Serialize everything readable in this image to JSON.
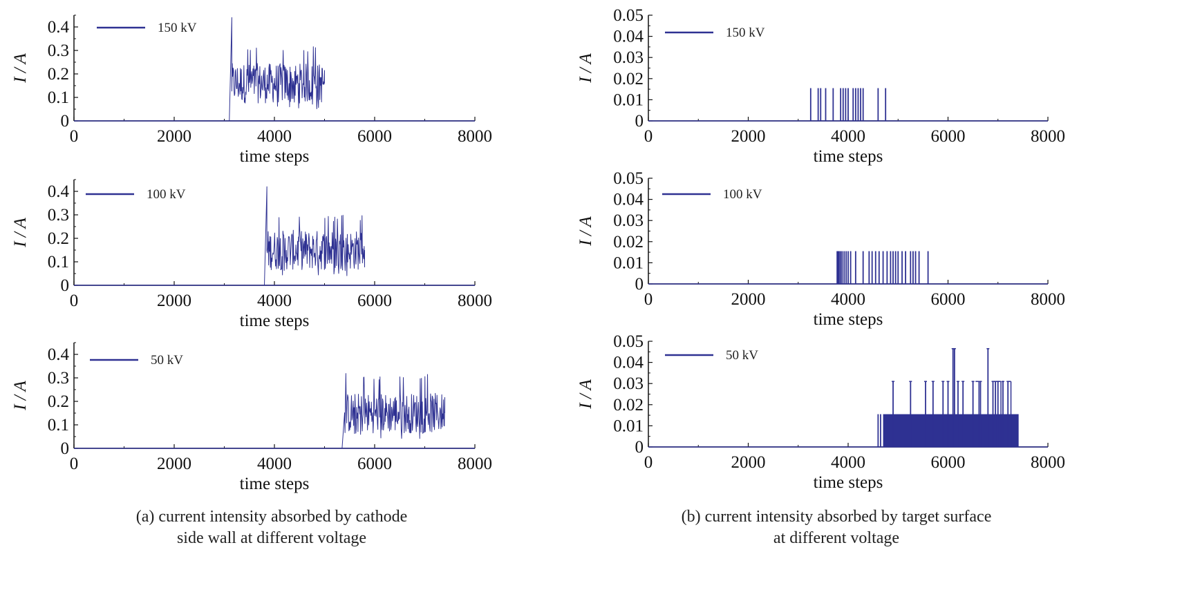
{
  "captions": {
    "a": [
      "(a) current intensity absorbed by cathode",
      "side wall at different voltage"
    ],
    "b": [
      "(b) current intensity absorbed by target surface",
      "at different voltage"
    ]
  },
  "style": {
    "series_color": "#2e3192",
    "axis_color": "#111111"
  },
  "chart_data": [
    {
      "type": "line",
      "panel": "a-150kV",
      "legend": "150 kV",
      "xlabel": "time steps",
      "ylabel": "I / A",
      "xlim": [
        0,
        8000
      ],
      "ylim": [
        0,
        0.45
      ],
      "xticks": [
        "0",
        "2000",
        "4000",
        "6000",
        "8000"
      ],
      "yticks": [
        "0",
        "0.1",
        "0.2",
        "0.3",
        "0.4"
      ],
      "series": [
        {
          "values_note": "0 until ~3100, spike ~0.44 at ~3150, noisy band 0.05-0.32 until ~5000, then ends",
          "x": [
            0,
            3100,
            3150,
            3200,
            3400,
            3600,
            3800,
            4000,
            4200,
            4400,
            4600,
            4800,
            5000
          ],
          "y": [
            0,
            0,
            0.44,
            0.16,
            0.17,
            0.16,
            0.15,
            0.16,
            0.15,
            0.16,
            0.16,
            0.15,
            0.16
          ],
          "band": {
            "x_start": 3150,
            "x_end": 5000,
            "low": 0.05,
            "high": 0.32,
            "mean": 0.16
          }
        }
      ]
    },
    {
      "type": "line",
      "panel": "a-100kV",
      "legend": "100 kV",
      "xlabel": "time steps",
      "ylabel": "I / A",
      "xlim": [
        0,
        8000
      ],
      "ylim": [
        0,
        0.45
      ],
      "xticks": [
        "0",
        "2000",
        "4000",
        "6000",
        "8000"
      ],
      "yticks": [
        "0",
        "0.1",
        "0.2",
        "0.3",
        "0.4"
      ],
      "series": [
        {
          "x": [
            0,
            3800,
            3850,
            3900,
            4200,
            4600,
            5000,
            5400,
            5800
          ],
          "y": [
            0,
            0,
            0.42,
            0.16,
            0.15,
            0.15,
            0.15,
            0.14,
            0.15
          ],
          "band": {
            "x_start": 3850,
            "x_end": 5800,
            "low": 0.04,
            "high": 0.3,
            "mean": 0.15
          }
        }
      ]
    },
    {
      "type": "line",
      "panel": "a-50kV",
      "legend": "50 kV",
      "xlabel": "time steps",
      "ylabel": "I / A",
      "xlim": [
        0,
        8000
      ],
      "ylim": [
        0,
        0.45
      ],
      "xticks": [
        "0",
        "2000",
        "4000",
        "6000",
        "8000"
      ],
      "yticks": [
        "0",
        "0.1",
        "0.2",
        "0.3",
        "0.4"
      ],
      "series": [
        {
          "x": [
            0,
            5350,
            5400,
            5800,
            6200,
            6600,
            7000,
            7400
          ],
          "y": [
            0,
            0,
            0.15,
            0.15,
            0.14,
            0.15,
            0.15,
            0.15
          ],
          "band": {
            "x_start": 5400,
            "x_end": 7400,
            "low": 0.04,
            "high": 0.32,
            "mean": 0.15
          }
        }
      ]
    },
    {
      "type": "line",
      "panel": "b-150kV",
      "legend": "150 kV",
      "xlabel": "time steps",
      "ylabel": "I / A",
      "xlim": [
        0,
        8000
      ],
      "ylim": [
        0,
        0.05
      ],
      "xticks": [
        "0",
        "2000",
        "4000",
        "6000",
        "8000"
      ],
      "yticks": [
        "0",
        "0.01",
        "0.02",
        "0.03",
        "0.04",
        "0.05"
      ],
      "series": [
        {
          "spike_height": 0.0155,
          "spikes_x": [
            3250,
            3400,
            3450,
            3550,
            3700,
            3850,
            3900,
            3950,
            4000,
            4100,
            4150,
            4200,
            4250,
            4300,
            4600,
            4750
          ]
        }
      ]
    },
    {
      "type": "line",
      "panel": "b-100kV",
      "legend": "100 kV",
      "xlabel": "time steps",
      "ylabel": "I / A",
      "xlim": [
        0,
        8000
      ],
      "ylim": [
        0,
        0.05
      ],
      "xticks": [
        "0",
        "2000",
        "4000",
        "6000",
        "8000"
      ],
      "yticks": [
        "0",
        "0.01",
        "0.02",
        "0.03",
        "0.04",
        "0.05"
      ],
      "series": [
        {
          "spike_height": 0.0155,
          "spikes_x": [
            3780,
            3800,
            3820,
            3850,
            3880,
            3920,
            3960,
            4000,
            4050,
            4150,
            4300,
            4420,
            4480,
            4550,
            4620,
            4700,
            4780,
            4850,
            4900,
            4950,
            5000,
            5080,
            5150,
            5250,
            5300,
            5350,
            5420,
            5600
          ]
        }
      ]
    },
    {
      "type": "line",
      "panel": "b-50kV",
      "legend": "50 kV",
      "xlabel": "time steps",
      "ylabel": "I / A",
      "xlim": [
        0,
        8000
      ],
      "ylim": [
        0,
        0.05
      ],
      "xticks": [
        "0",
        "2000",
        "4000",
        "6000",
        "8000"
      ],
      "yticks": [
        "0",
        "0.01",
        "0.02",
        "0.03",
        "0.04",
        "0.05"
      ],
      "series": [
        {
          "dense_band": {
            "x_start": 4700,
            "x_end": 7400,
            "level": 0.0155
          },
          "early_spikes": [
            {
              "x": 4600,
              "y": 0.0155
            },
            {
              "x": 4650,
              "y": 0.0155
            }
          ],
          "tall_spikes": [
            {
              "x": 4900,
              "y": 0.031
            },
            {
              "x": 5250,
              "y": 0.031
            },
            {
              "x": 5550,
              "y": 0.031
            },
            {
              "x": 5700,
              "y": 0.031
            },
            {
              "x": 5900,
              "y": 0.031
            },
            {
              "x": 6000,
              "y": 0.031
            },
            {
              "x": 6100,
              "y": 0.0465
            },
            {
              "x": 6130,
              "y": 0.0465
            },
            {
              "x": 6200,
              "y": 0.031
            },
            {
              "x": 6300,
              "y": 0.031
            },
            {
              "x": 6500,
              "y": 0.031
            },
            {
              "x": 6650,
              "y": 0.031
            },
            {
              "x": 6800,
              "y": 0.0465
            },
            {
              "x": 6900,
              "y": 0.031
            },
            {
              "x": 6950,
              "y": 0.031
            },
            {
              "x": 7000,
              "y": 0.031
            },
            {
              "x": 7100,
              "y": 0.031
            },
            {
              "x": 7200,
              "y": 0.031
            }
          ]
        }
      ]
    }
  ]
}
